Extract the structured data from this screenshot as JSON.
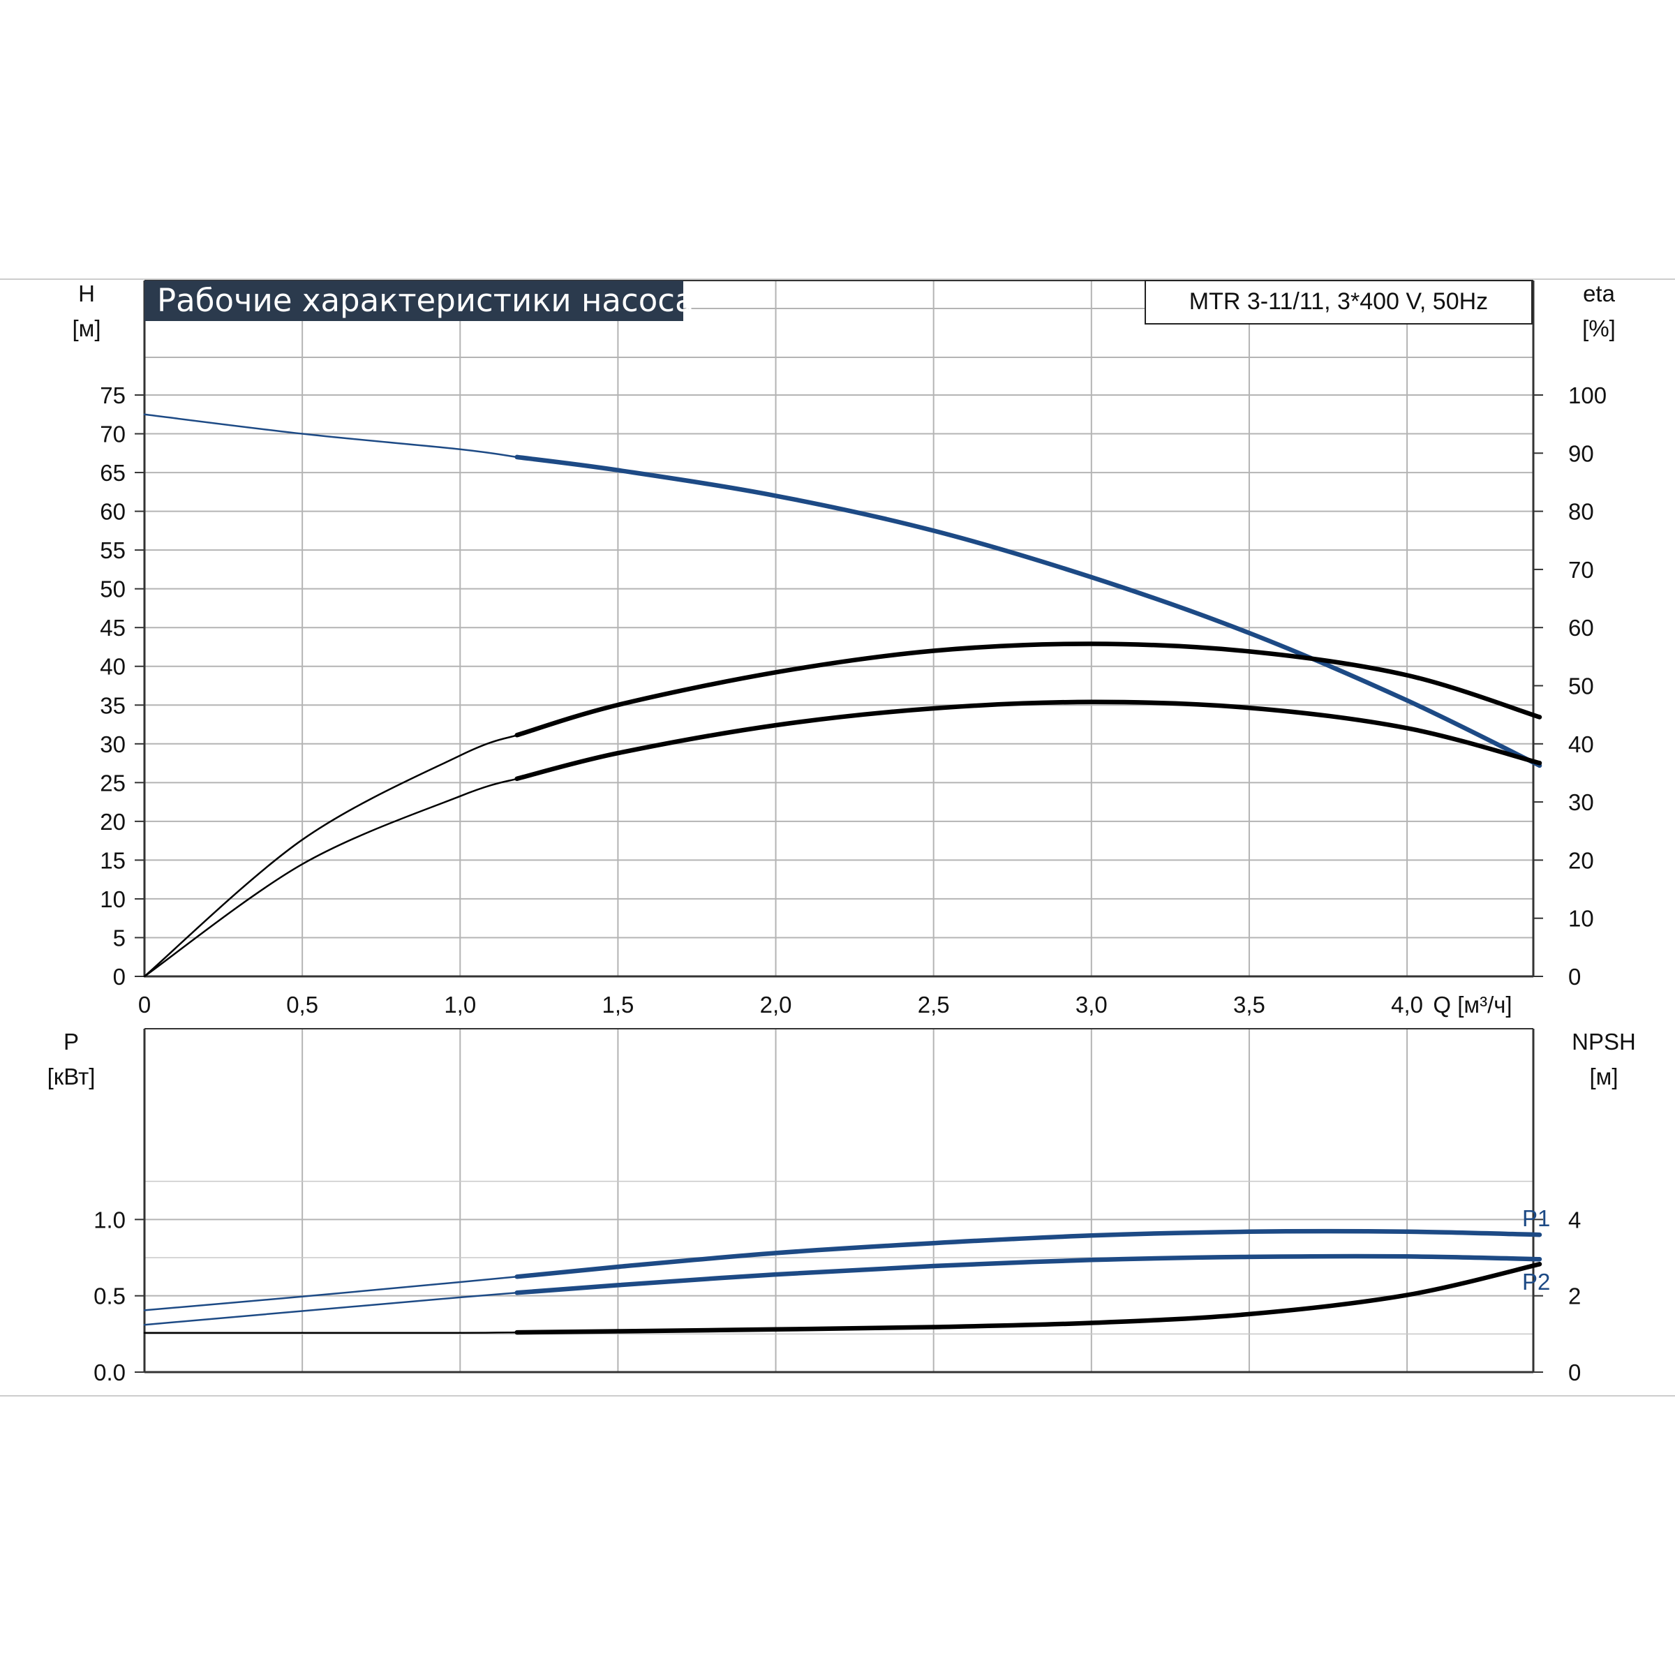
{
  "title": "Рабочие характеристики насоса",
  "model": "MTR 3-11/11, 3*400 V, 50Hz",
  "colors": {
    "blue": "#1d4a85",
    "black": "#000000",
    "title_bg": "#2b3a4d",
    "grid": "#aeaeae"
  },
  "chart_data": [
    {
      "type": "line",
      "name": "head-efficiency",
      "left_axis": {
        "label_top": "H",
        "label_unit": "[м]",
        "ticks": [
          "0",
          "5",
          "10",
          "15",
          "20",
          "25",
          "30",
          "35",
          "40",
          "45",
          "50",
          "55",
          "60",
          "65",
          "70",
          "75"
        ],
        "ylim": [
          0,
          75
        ]
      },
      "right_axis": {
        "label_top": "eta",
        "label_unit": "[%]",
        "ticks": [
          "0",
          "10",
          "20",
          "30",
          "40",
          "50",
          "60",
          "70",
          "80",
          "90",
          "100"
        ],
        "ylim": [
          0,
          100
        ]
      },
      "x_axis": {
        "label": "Q [м³/ч]",
        "ticks": [
          "0",
          "0,5",
          "1,0",
          "1,5",
          "2,0",
          "2,5",
          "3,0",
          "3,5",
          "4,0"
        ],
        "xlim": [
          0,
          4.4
        ]
      },
      "grid": true,
      "series": [
        {
          "color": "#1d4a85",
          "axis": "left",
          "x": [
            0,
            0.5,
            1.0,
            1.18,
            1.5,
            2.0,
            2.5,
            3.0,
            3.5,
            4.0,
            4.42
          ],
          "y": [
            72.5,
            70.0,
            68.0,
            67.0,
            65.3,
            62.0,
            57.5,
            51.5,
            44.3,
            35.6,
            27.2
          ]
        },
        {
          "color": "#000000",
          "axis": "right",
          "x": [
            0,
            0.5,
            1.0,
            1.18,
            1.5,
            2.0,
            2.5,
            3.0,
            3.5,
            4.0,
            4.42
          ],
          "y": [
            0,
            23.5,
            38.0,
            41.5,
            46.7,
            52.3,
            56.0,
            57.2,
            55.9,
            51.8,
            44.6
          ]
        },
        {
          "color": "#000000",
          "axis": "right",
          "x": [
            0,
            0.5,
            1.0,
            1.18,
            1.5,
            2.0,
            2.5,
            3.0,
            3.5,
            4.0,
            4.42
          ],
          "y": [
            0,
            19.3,
            31.0,
            34.0,
            38.4,
            43.2,
            46.1,
            47.2,
            46.2,
            42.7,
            36.7
          ]
        }
      ]
    },
    {
      "type": "line",
      "name": "power-npsh",
      "left_axis": {
        "label_top": "P",
        "label_unit": "[кВт]",
        "ticks": [
          "0.0",
          "0.5",
          "1.0"
        ],
        "ylim": [
          0,
          1.5
        ]
      },
      "right_axis": {
        "label_top": "NPSH",
        "label_unit": "[м]",
        "ticks": [
          "0",
          "2",
          "4"
        ],
        "ylim": [
          0,
          6
        ]
      },
      "x_axis": {
        "xlim": [
          0,
          4.4
        ]
      },
      "grid": true,
      "series": [
        {
          "name": "P1",
          "color": "#1d4a85",
          "axis": "left",
          "x": [
            0,
            0.5,
            1.0,
            1.18,
            1.5,
            2.0,
            2.5,
            3.0,
            3.5,
            4.0,
            4.42
          ],
          "y": [
            0.405,
            0.495,
            0.59,
            0.625,
            0.69,
            0.78,
            0.845,
            0.895,
            0.92,
            0.92,
            0.9
          ]
        },
        {
          "name": "P2",
          "color": "#1d4a85",
          "axis": "left",
          "x": [
            0,
            0.5,
            1.0,
            1.18,
            1.5,
            2.0,
            2.5,
            3.0,
            3.5,
            4.0,
            4.42
          ],
          "y": [
            0.31,
            0.4,
            0.49,
            0.52,
            0.57,
            0.64,
            0.695,
            0.735,
            0.755,
            0.758,
            0.74
          ]
        },
        {
          "color": "#000000",
          "axis": "right",
          "x": [
            0,
            0.5,
            1.0,
            1.18,
            1.5,
            2.0,
            2.5,
            3.0,
            3.5,
            4.0,
            4.42
          ],
          "y": [
            1.03,
            1.03,
            1.03,
            1.04,
            1.07,
            1.12,
            1.18,
            1.29,
            1.52,
            2.02,
            2.83
          ]
        }
      ]
    }
  ]
}
